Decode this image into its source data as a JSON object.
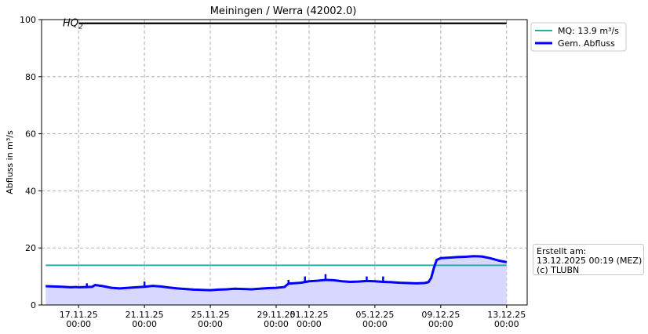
{
  "chart_data": {
    "type": "line",
    "title": "Meiningen / Werra (42002.0)",
    "ylabel": "Abfluss in m³/s",
    "xlabel": "",
    "ylim": [
      0,
      100
    ],
    "xlim": [
      "2025-11-14T18:00",
      "2025-12-14T06:00"
    ],
    "y_ticks": [
      0,
      20,
      40,
      60,
      80,
      100
    ],
    "x_ticks": [
      {
        "date": "2025-11-17T00:00",
        "label": "17.11.25",
        "sub": "00:00"
      },
      {
        "date": "2025-11-21T00:00",
        "label": "21.11.25",
        "sub": "00:00"
      },
      {
        "date": "2025-11-25T00:00",
        "label": "25.11.25",
        "sub": "00:00"
      },
      {
        "date": "2025-11-29T00:00",
        "label": "29.11.25",
        "sub": "00:00"
      },
      {
        "date": "2025-12-01T00:00",
        "label": "01.12.25",
        "sub": "00:00"
      },
      {
        "date": "2025-12-05T00:00",
        "label": "05.12.25",
        "sub": "00:00"
      },
      {
        "date": "2025-12-09T00:00",
        "label": "09.12.25",
        "sub": "00:00"
      },
      {
        "date": "2025-12-13T00:00",
        "label": "13.12.25",
        "sub": "00:00"
      }
    ],
    "grid": true,
    "legend_position": "outside-top-right",
    "series": [
      {
        "name": "Gem. Abfluss",
        "color": "#0000ff",
        "fill": "#d8d8ff",
        "points": [
          [
            "2025-11-15T00:00",
            6.6
          ],
          [
            "2025-11-15T12:00",
            6.5
          ],
          [
            "2025-11-16T00:00",
            6.4
          ],
          [
            "2025-11-16T12:00",
            6.2
          ],
          [
            "2025-11-16T20:00",
            6.3
          ],
          [
            "2025-11-17T00:00",
            6.2
          ],
          [
            "2025-11-17T12:00",
            6.3
          ],
          [
            "2025-11-17T20:00",
            6.4
          ],
          [
            "2025-11-18T00:00",
            7.0
          ],
          [
            "2025-11-18T12:00",
            6.6
          ],
          [
            "2025-11-19T00:00",
            6.0
          ],
          [
            "2025-11-19T12:00",
            5.8
          ],
          [
            "2025-11-20T00:00",
            6.0
          ],
          [
            "2025-11-20T12:00",
            6.2
          ],
          [
            "2025-11-21T00:00",
            6.4
          ],
          [
            "2025-11-21T12:00",
            6.7
          ],
          [
            "2025-11-22T00:00",
            6.5
          ],
          [
            "2025-11-22T12:00",
            6.1
          ],
          [
            "2025-11-23T00:00",
            5.8
          ],
          [
            "2025-11-23T12:00",
            5.6
          ],
          [
            "2025-11-24T00:00",
            5.4
          ],
          [
            "2025-11-24T12:00",
            5.3
          ],
          [
            "2025-11-25T00:00",
            5.2
          ],
          [
            "2025-11-25T12:00",
            5.4
          ],
          [
            "2025-11-26T00:00",
            5.5
          ],
          [
            "2025-11-26T12:00",
            5.7
          ],
          [
            "2025-11-27T00:00",
            5.6
          ],
          [
            "2025-11-27T12:00",
            5.5
          ],
          [
            "2025-11-28T00:00",
            5.7
          ],
          [
            "2025-11-28T12:00",
            5.9
          ],
          [
            "2025-11-29T00:00",
            6.0
          ],
          [
            "2025-11-29T12:00",
            6.3
          ],
          [
            "2025-11-29T18:00",
            7.5
          ],
          [
            "2025-11-30T00:00",
            7.6
          ],
          [
            "2025-11-30T12:00",
            7.8
          ],
          [
            "2025-12-01T00:00",
            8.3
          ],
          [
            "2025-12-01T12:00",
            8.5
          ],
          [
            "2025-12-02T00:00",
            8.8
          ],
          [
            "2025-12-02T12:00",
            8.7
          ],
          [
            "2025-12-03T00:00",
            8.3
          ],
          [
            "2025-12-03T12:00",
            8.1
          ],
          [
            "2025-12-04T00:00",
            8.2
          ],
          [
            "2025-12-04T12:00",
            8.4
          ],
          [
            "2025-12-05T00:00",
            8.3
          ],
          [
            "2025-12-05T12:00",
            8.1
          ],
          [
            "2025-12-06T00:00",
            8.0
          ],
          [
            "2025-12-06T12:00",
            7.8
          ],
          [
            "2025-12-07T00:00",
            7.7
          ],
          [
            "2025-12-07T12:00",
            7.6
          ],
          [
            "2025-12-08T00:00",
            7.7
          ],
          [
            "2025-12-08T06:00",
            8.0
          ],
          [
            "2025-12-08T10:00",
            9.5
          ],
          [
            "2025-12-08T14:00",
            13.0
          ],
          [
            "2025-12-08T18:00",
            15.8
          ],
          [
            "2025-12-09T00:00",
            16.4
          ],
          [
            "2025-12-09T12:00",
            16.6
          ],
          [
            "2025-12-10T00:00",
            16.8
          ],
          [
            "2025-12-10T12:00",
            16.9
          ],
          [
            "2025-12-11T00:00",
            17.1
          ],
          [
            "2025-12-11T12:00",
            17.0
          ],
          [
            "2025-12-12T00:00",
            16.4
          ],
          [
            "2025-12-12T12:00",
            15.6
          ],
          [
            "2025-12-13T00:00",
            15.0
          ]
        ],
        "spikes": [
          [
            "2025-11-17T12:00",
            7.6
          ],
          [
            "2025-11-21T00:00",
            8.2
          ],
          [
            "2025-11-29T18:00",
            8.8
          ],
          [
            "2025-11-30T18:00",
            10.0
          ],
          [
            "2025-12-02T00:00",
            10.8
          ],
          [
            "2025-12-04T12:00",
            10.0
          ],
          [
            "2025-12-05T12:00",
            10.0
          ]
        ]
      },
      {
        "name": "MQ: 13.9 m³/s",
        "color": "#20b2aa",
        "points": [
          [
            "2025-11-15T00:00",
            13.9
          ],
          [
            "2025-12-13T00:00",
            13.9
          ]
        ]
      }
    ],
    "annotations": [
      {
        "label_base": "HQ",
        "label_sub": "2",
        "value": 98.7,
        "color": "#000000",
        "x_start": "2025-11-17T00:00",
        "x_end": "2025-12-13T00:00"
      }
    ]
  },
  "info_box": {
    "line1": "Erstellt am:",
    "line2": "13.12.2025 00:19 (MEZ)",
    "line3": "(c) TLUBN"
  }
}
